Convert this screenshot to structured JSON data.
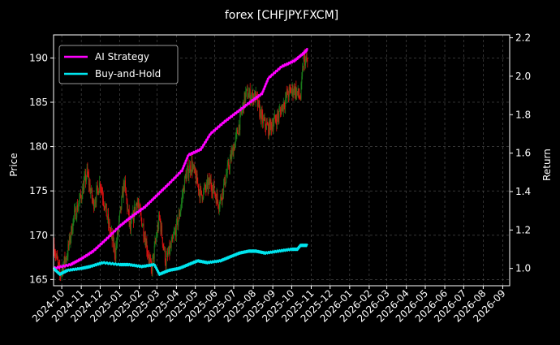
{
  "chart_data": {
    "type": "line",
    "title": "forex [CHFJPY.FXCM]",
    "ylabel_left": "Price",
    "ylabel_right": "Return",
    "x_ticks": [
      "2024-10",
      "2024-11",
      "2024-12",
      "2025-01",
      "2025-02",
      "2025-03",
      "2025-04",
      "2025-05",
      "2025-06",
      "2025-07",
      "2025-08",
      "2025-09",
      "2025-10",
      "2025-11",
      "2025-12",
      "2026-01",
      "2026-02",
      "2026-03",
      "2026-04",
      "2026-05",
      "2026-06",
      "2026-07",
      "2026-08",
      "2026-09"
    ],
    "xlim": [
      "2024-09-18",
      "2026-09-12"
    ],
    "y_left_ticks": [
      165,
      170,
      175,
      180,
      185,
      190
    ],
    "ylim_left": [
      164.3,
      192.6
    ],
    "y_right_ticks": [
      1.0,
      1.2,
      1.4,
      1.6,
      1.8,
      2.0,
      2.2
    ],
    "ylim_right": [
      0.91,
      2.215
    ],
    "grid": true,
    "legend_position": "top-left",
    "colors": {
      "strategy": "#ff00ff",
      "buyhold": "#00e5ee",
      "candle_up": "#1a7a1a",
      "candle_down": "#dd1111",
      "grid": "#555555",
      "background": "#000000",
      "axes": "#ffffff"
    },
    "series": [
      {
        "name": "AI Strategy",
        "axis": "right",
        "points": [
          [
            "2024-09-18",
            1.0
          ],
          [
            "2024-10-15",
            1.02
          ],
          [
            "2024-11-01",
            1.05
          ],
          [
            "2024-11-20",
            1.09
          ],
          [
            "2024-12-10",
            1.15
          ],
          [
            "2025-01-01",
            1.22
          ],
          [
            "2025-01-20",
            1.27
          ],
          [
            "2025-02-10",
            1.32
          ],
          [
            "2025-03-01",
            1.38
          ],
          [
            "2025-03-20",
            1.44
          ],
          [
            "2025-04-10",
            1.51
          ],
          [
            "2025-04-20",
            1.59
          ],
          [
            "2025-05-10",
            1.62
          ],
          [
            "2025-05-25",
            1.7
          ],
          [
            "2025-06-15",
            1.76
          ],
          [
            "2025-07-05",
            1.81
          ],
          [
            "2025-07-25",
            1.86
          ],
          [
            "2025-08-15",
            1.91
          ],
          [
            "2025-08-25",
            1.99
          ],
          [
            "2025-09-15",
            2.05
          ],
          [
            "2025-10-05",
            2.08
          ],
          [
            "2025-10-20",
            2.12
          ],
          [
            "2025-10-26",
            2.14
          ]
        ]
      },
      {
        "name": "Buy-and-Hold",
        "axis": "right",
        "points": [
          [
            "2024-09-18",
            1.0
          ],
          [
            "2024-09-28",
            0.97
          ],
          [
            "2024-10-10",
            0.99
          ],
          [
            "2024-11-01",
            1.0
          ],
          [
            "2024-11-15",
            1.01
          ],
          [
            "2024-12-05",
            1.03
          ],
          [
            "2025-01-01",
            1.02
          ],
          [
            "2025-01-15",
            1.02
          ],
          [
            "2025-02-05",
            1.01
          ],
          [
            "2025-02-25",
            1.02
          ],
          [
            "2025-03-05",
            0.97
          ],
          [
            "2025-03-20",
            0.99
          ],
          [
            "2025-04-05",
            1.0
          ],
          [
            "2025-04-20",
            1.02
          ],
          [
            "2025-05-05",
            1.04
          ],
          [
            "2025-05-20",
            1.03
          ],
          [
            "2025-06-10",
            1.04
          ],
          [
            "2025-06-25",
            1.06
          ],
          [
            "2025-07-10",
            1.08
          ],
          [
            "2025-07-25",
            1.09
          ],
          [
            "2025-08-05",
            1.09
          ],
          [
            "2025-08-20",
            1.08
          ],
          [
            "2025-09-10",
            1.09
          ],
          [
            "2025-10-01",
            1.1
          ],
          [
            "2025-10-10",
            1.1
          ],
          [
            "2025-10-15",
            1.12
          ],
          [
            "2025-10-26",
            1.12
          ]
        ]
      },
      {
        "name": "Price",
        "axis": "left",
        "style": "candles",
        "points": [
          [
            "2024-09-18",
            169.0
          ],
          [
            "2024-09-28",
            165.5
          ],
          [
            "2024-10-10",
            168.0
          ],
          [
            "2024-10-20",
            172.0
          ],
          [
            "2024-10-30",
            174.0
          ],
          [
            "2024-11-10",
            177.0
          ],
          [
            "2024-11-20",
            173.5
          ],
          [
            "2024-12-01",
            176.0
          ],
          [
            "2024-12-15",
            171.0
          ],
          [
            "2024-12-25",
            168.0
          ],
          [
            "2025-01-08",
            176.0
          ],
          [
            "2025-01-18",
            170.5
          ],
          [
            "2025-01-28",
            174.0
          ],
          [
            "2025-02-07",
            171.0
          ],
          [
            "2025-02-20",
            166.0
          ],
          [
            "2025-03-05",
            172.0
          ],
          [
            "2025-03-15",
            167.0
          ],
          [
            "2025-03-25",
            169.0
          ],
          [
            "2025-04-05",
            172.0
          ],
          [
            "2025-04-15",
            176.5
          ],
          [
            "2025-04-25",
            178.0
          ],
          [
            "2025-05-10",
            174.5
          ],
          [
            "2025-05-25",
            176.0
          ],
          [
            "2025-06-08",
            173.5
          ],
          [
            "2025-06-20",
            177.0
          ],
          [
            "2025-07-05",
            181.0
          ],
          [
            "2025-07-20",
            186.0
          ],
          [
            "2025-08-05",
            185.5
          ],
          [
            "2025-08-15",
            183.0
          ],
          [
            "2025-08-25",
            182.0
          ],
          [
            "2025-09-10",
            183.5
          ],
          [
            "2025-09-25",
            186.0
          ],
          [
            "2025-10-05",
            186.5
          ],
          [
            "2025-10-15",
            185.5
          ],
          [
            "2025-10-20",
            190.0
          ],
          [
            "2025-10-26",
            189.5
          ]
        ]
      }
    ],
    "legend": [
      "AI Strategy",
      "Buy-and-Hold"
    ]
  }
}
